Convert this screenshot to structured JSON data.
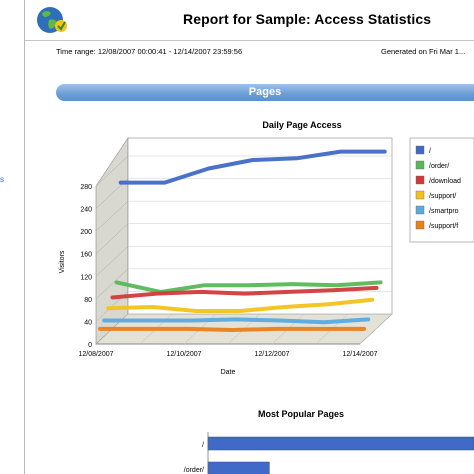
{
  "sidebar": {
    "link_text": "s"
  },
  "report": {
    "title": "Report for Sample: Access Statistics",
    "time_range": "Time range: 12/08/2007 00:00:41 - 12/14/2007 23:59:56",
    "generated": "Generated on Fri Mar 1..."
  },
  "section": {
    "title": "Pages"
  },
  "colors": {
    "section_bar": "#6b9cd6",
    "series": [
      "#4169c8",
      "#58b858",
      "#d23a3a",
      "#f2c21c",
      "#5aaae0",
      "#e8801c"
    ]
  },
  "chart_data": [
    {
      "type": "line",
      "title": "Daily Page Access",
      "xlabel": "Date",
      "ylabel": "Visitors",
      "x": [
        "12/08/2007",
        "12/09/2007",
        "12/10/2007",
        "12/11/2007",
        "12/12/2007",
        "12/13/2007",
        "12/14/2007"
      ],
      "x_tick_labels": [
        "12/08/2007",
        "12/10/2007",
        "12/12/2007",
        "12/14/2007"
      ],
      "y_ticks": [
        0,
        40,
        80,
        120,
        160,
        200,
        240,
        280
      ],
      "ylim": [
        0,
        280
      ],
      "series": [
        {
          "name": "/",
          "values": [
            245,
            245,
            270,
            285,
            288,
            300,
            300
          ]
        },
        {
          "name": "/order/",
          "values": [
            75,
            58,
            70,
            70,
            72,
            70,
            75
          ]
        },
        {
          "name": "/download",
          "values": [
            55,
            62,
            65,
            62,
            65,
            68,
            72
          ]
        },
        {
          "name": "/support/",
          "values": [
            43,
            45,
            38,
            38,
            45,
            50,
            58
          ]
        },
        {
          "name": "/smartpro",
          "values": [
            28,
            28,
            28,
            30,
            28,
            25,
            30
          ]
        },
        {
          "name": "/support/f",
          "values": [
            20,
            20,
            20,
            18,
            20,
            20,
            20
          ]
        }
      ],
      "legend_position": "right",
      "grid": true
    },
    {
      "type": "bar",
      "title": "Most Popular Pages",
      "categories": [
        "/",
        "/order/"
      ],
      "values": [
        1950,
        450
      ]
    }
  ]
}
